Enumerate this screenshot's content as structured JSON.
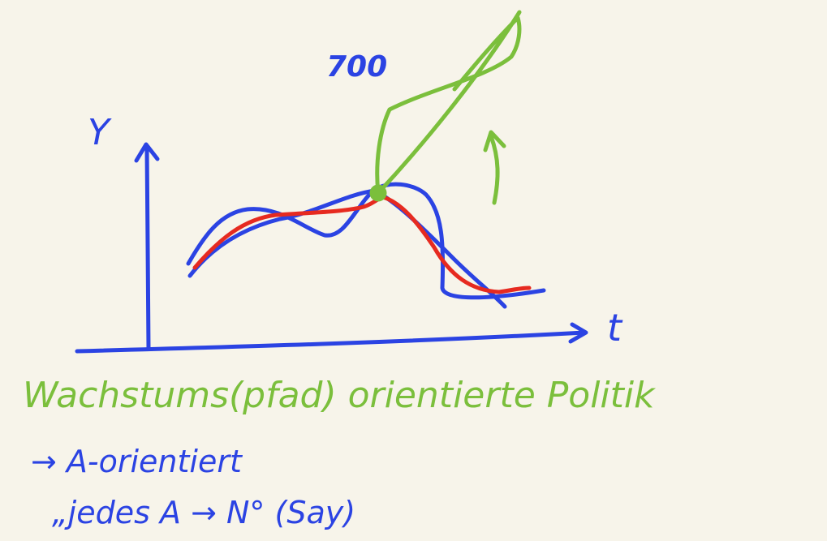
{
  "labels": {
    "y_axis": "Y",
    "x_axis": "t",
    "annotation_top": "700"
  },
  "notes": {
    "heading": "Wachstums(pfad) orientierte Politik",
    "line1": "→ A-orientiert",
    "line2": "„jedes A → N° (Say)"
  },
  "colors": {
    "background": "#f7f4ea",
    "blue": "#2b43e3",
    "red": "#e62a20",
    "green": "#7bbf3c"
  }
}
